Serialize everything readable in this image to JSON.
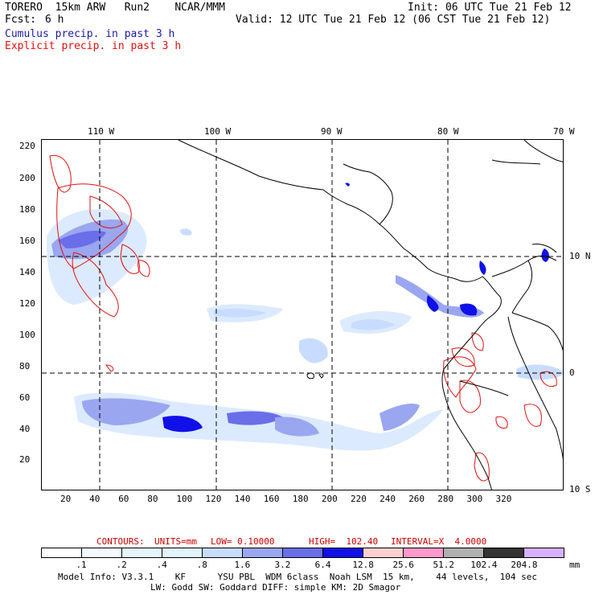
{
  "header": {
    "model": "TORERO  15km ARW   Run2    NCAR/MMM",
    "fcst_label": "Fcst:",
    "fcst_value": "6 h",
    "init": "Init: 06 UTC Tue 21 Feb 12",
    "valid": "Valid: 12 UTC Tue 21 Feb 12 (06 CST Tue 21 Feb 12)",
    "legend_cumulus": "Cumulus precip. in past 3 h",
    "legend_explicit": "Explicit precip. in past 3 h"
  },
  "colors": {
    "cumulus": "#1a1aa8",
    "explicit": "#e01010",
    "contours_text": "#c80000"
  },
  "map": {
    "top_lon_labels": [
      "110 W",
      "100 W",
      "90 W",
      "80 W",
      "70 W"
    ],
    "right_lat_labels": [
      "10 N",
      "0",
      "10 S"
    ],
    "y_ticks": [
      "220",
      "200",
      "180",
      "160",
      "140",
      "120",
      "100",
      "80",
      "60",
      "40",
      "20"
    ],
    "x_ticks": [
      "20",
      "40",
      "60",
      "80",
      "100",
      "120",
      "140",
      "160",
      "180",
      "200",
      "220",
      "240",
      "260",
      "280",
      "300",
      "320"
    ]
  },
  "contours": {
    "label": "CONTOURS:",
    "units": "UNITS=mm",
    "low": "LOW= 0.10000",
    "high": "HIGH=  102.40",
    "interval": "INTERVAL=X  4.0000"
  },
  "colorbar": {
    "levels": [
      ".1",
      ".2",
      ".4",
      ".8",
      "1.6",
      "3.2",
      "6.4",
      "12.8",
      "25.6",
      "51.2",
      "102.4",
      "204.8"
    ],
    "unit": "mm",
    "colors": [
      "#ffffff",
      "#f4faff",
      "#e6f6ff",
      "#e0f4ff",
      "#c8dcff",
      "#9aa6f0",
      "#6a6ee8",
      "#1010e8",
      "#ffd0d0",
      "#ff99cc",
      "#b0b0b0",
      "#333333",
      "#d8b0ff"
    ]
  },
  "footer": {
    "line1": "Model Info: V3.3.1    KF      YSU PBL  WDM 6class  Noah LSM  15 km,    44 levels,  104 sec",
    "line2": "LW: Godd SW: Goddard DIFF: simple KM: 2D Smagor"
  }
}
